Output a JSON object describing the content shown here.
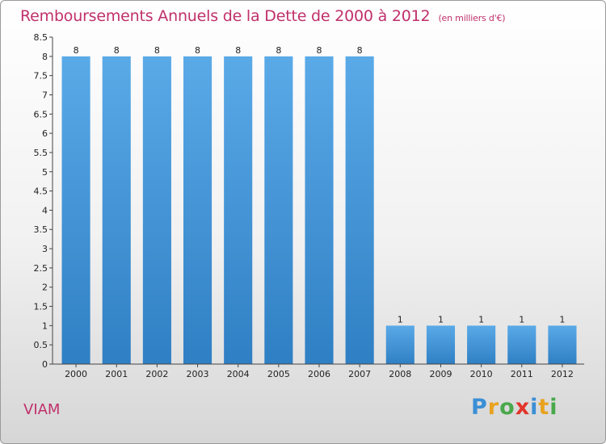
{
  "header": {
    "title": "Remboursements Annuels de la Dette de 2000 à 2012",
    "subtitle": "(en milliers d'€)"
  },
  "commune": "VIAM",
  "logo": {
    "letters": [
      {
        "ch": "P",
        "color": "#3b8fd6"
      },
      {
        "ch": "r",
        "color": "#e8a21f"
      },
      {
        "ch": "o",
        "color": "#49a84c"
      },
      {
        "ch": "x",
        "color": "#e2352b"
      },
      {
        "ch": "i",
        "color": "#3b8fd6"
      },
      {
        "ch": "t",
        "color": "#e8a21f"
      },
      {
        "ch": "i",
        "color": "#49a84c"
      }
    ]
  },
  "colors": {
    "bar_top": "#5aaae8",
    "bar_bottom": "#2f7fc4",
    "title": "#c0306b"
  },
  "chart_data": {
    "type": "bar",
    "categories": [
      "2000",
      "2001",
      "2002",
      "2003",
      "2004",
      "2005",
      "2006",
      "2007",
      "2008",
      "2009",
      "2010",
      "2011",
      "2012"
    ],
    "values": [
      8,
      8,
      8,
      8,
      8,
      8,
      8,
      8,
      1,
      1,
      1,
      1,
      1
    ],
    "ylim": [
      0,
      8.5
    ],
    "yticks": [
      "0",
      "0.5",
      "1",
      "1.5",
      "2",
      "2.5",
      "3",
      "3.5",
      "4",
      "4.5",
      "5",
      "5.5",
      "6",
      "6.5",
      "7",
      "7.5",
      "8",
      "8.5"
    ],
    "grid": false
  }
}
